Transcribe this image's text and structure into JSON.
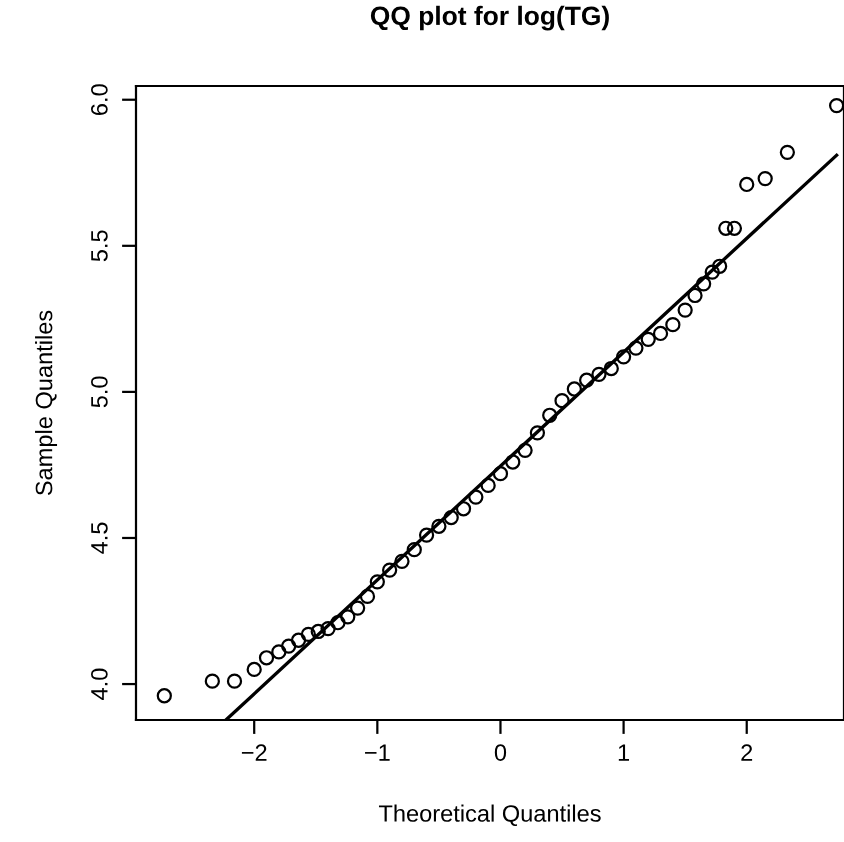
{
  "chart_data": {
    "type": "scatter",
    "title": "QQ plot for log(TG)",
    "xlabel": "Theoretical Quantiles",
    "ylabel": "Sample Quantiles",
    "xlim": [
      -2.96,
      2.79
    ],
    "ylim": [
      3.877,
      6.047
    ],
    "xticks": [
      {
        "value": -2,
        "label": "−2"
      },
      {
        "value": -1,
        "label": "−1"
      },
      0,
      1,
      2
    ],
    "yticks": [
      {
        "value": 4,
        "label": "4.0"
      },
      {
        "value": 4.5,
        "label": "4.5"
      },
      {
        "value": 5,
        "label": "5.0"
      },
      {
        "value": 5.5,
        "label": "5.5"
      },
      {
        "value": 6,
        "label": "6.0"
      }
    ],
    "grid": false,
    "legend": false,
    "series": [
      {
        "marker": "circle",
        "color": "#000000",
        "x": [
          -2.73,
          -2.34,
          -2.16,
          -2.0,
          -1.9,
          -1.8,
          -1.72,
          -1.64,
          -1.56,
          -1.48,
          -1.4,
          -1.32,
          -1.24,
          -1.16,
          -1.08,
          -1.0,
          -0.9,
          -0.8,
          -0.7,
          -0.6,
          -0.5,
          -0.4,
          -0.3,
          -0.2,
          -0.1,
          0,
          0.1,
          0.2,
          0.3,
          0.4,
          0.5,
          0.6,
          0.7,
          0.8,
          0.9,
          1.0,
          1.1,
          1.2,
          1.3,
          1.4,
          1.5,
          1.58,
          1.65,
          1.72,
          1.78,
          1.83,
          1.9,
          2.0,
          2.15,
          2.33,
          2.73
        ],
        "values": [
          3.96,
          4.01,
          4.01,
          4.05,
          4.09,
          4.11,
          4.13,
          4.15,
          4.17,
          4.18,
          4.19,
          4.21,
          4.23,
          4.26,
          4.3,
          4.35,
          4.39,
          4.42,
          4.46,
          4.51,
          4.54,
          4.57,
          4.6,
          4.64,
          4.68,
          4.72,
          4.76,
          4.8,
          4.86,
          4.92,
          4.97,
          5.01,
          5.04,
          5.06,
          5.08,
          5.12,
          5.15,
          5.18,
          5.2,
          5.23,
          5.28,
          5.33,
          5.37,
          5.41,
          5.43,
          5.56,
          5.56,
          5.71,
          5.73,
          5.82,
          5.98
        ]
      },
      {
        "type": "line",
        "line_style": "solid",
        "color": "#000000",
        "x": [
          -2.23,
          2.73
        ],
        "values": [
          3.877,
          5.81
        ]
      }
    ]
  }
}
